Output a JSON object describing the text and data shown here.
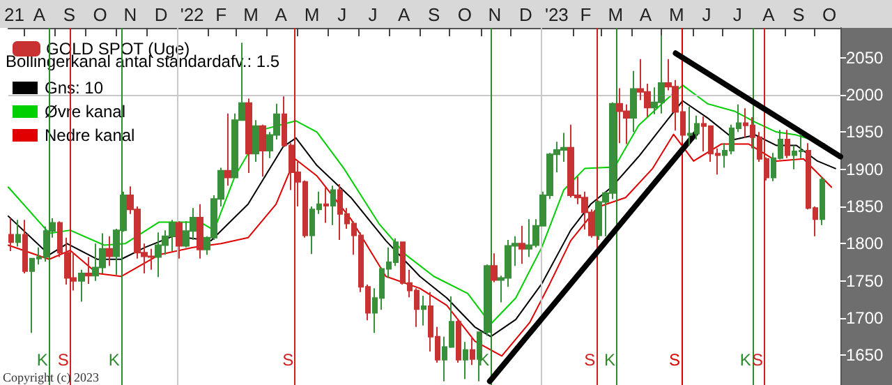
{
  "chart_data": {
    "type": "candlestick",
    "legend": "top left",
    "legend_title": "Bollingerkanal antal standardafv.: 1.5",
    "xlim": [
      "2021-07-16",
      "2023-10-27"
    ],
    "ylim": [
      1610,
      2090
    ],
    "yticks": [
      1650,
      1700,
      1750,
      1800,
      1850,
      1900,
      1950,
      2000,
      2050
    ],
    "xticks": [
      {
        "value": "2021-07-22",
        "label": "21"
      },
      {
        "value": "2021-08-16",
        "label": "A"
      },
      {
        "value": "2021-09-15",
        "label": "S"
      },
      {
        "value": "2021-10-16",
        "label": "O"
      },
      {
        "value": "2021-11-15",
        "label": "N"
      },
      {
        "value": "2021-12-16",
        "label": "D"
      },
      {
        "value": "2022-01-16",
        "label": "'22"
      },
      {
        "value": "2022-02-14",
        "label": "F"
      },
      {
        "value": "2022-03-16",
        "label": "M"
      },
      {
        "value": "2022-04-15",
        "label": "A"
      },
      {
        "value": "2022-05-16",
        "label": "M"
      },
      {
        "value": "2022-06-15",
        "label": "J"
      },
      {
        "value": "2022-07-16",
        "label": "J"
      },
      {
        "value": "2022-08-16",
        "label": "A"
      },
      {
        "value": "2022-09-15",
        "label": "S"
      },
      {
        "value": "2022-10-16",
        "label": "O"
      },
      {
        "value": "2022-11-15",
        "label": "N"
      },
      {
        "value": "2022-12-16",
        "label": "D"
      },
      {
        "value": "2023-01-16",
        "label": "'23"
      },
      {
        "value": "2023-02-14",
        "label": "F"
      },
      {
        "value": "2023-03-16",
        "label": "M"
      },
      {
        "value": "2023-04-15",
        "label": "A"
      },
      {
        "value": "2023-05-16",
        "label": "M"
      },
      {
        "value": "2023-06-15",
        "label": "J"
      },
      {
        "value": "2023-07-16",
        "label": "J"
      },
      {
        "value": "2023-08-16",
        "label": "A"
      },
      {
        "value": "2023-09-15",
        "label": "S"
      },
      {
        "value": "2023-10-16",
        "label": "O"
      },
      {
        "value": "2021-08-01",
        "label": null
      },
      {
        "value": "2021-09-01",
        "label": null
      },
      {
        "value": "2021-10-01",
        "label": null
      },
      {
        "value": "2021-11-01",
        "label": null
      },
      {
        "value": "2021-12-01",
        "label": null
      },
      {
        "value": "2022-02-01",
        "label": null
      },
      {
        "value": "2022-03-01",
        "label": null
      },
      {
        "value": "2022-04-01",
        "label": null
      },
      {
        "value": "2022-05-01",
        "label": null
      },
      {
        "value": "2022-06-01",
        "label": null
      },
      {
        "value": "2022-07-01",
        "label": null
      },
      {
        "value": "2022-08-01",
        "label": null
      },
      {
        "value": "2022-09-01",
        "label": null
      },
      {
        "value": "2022-10-01",
        "label": null
      },
      {
        "value": "2022-11-01",
        "label": null
      },
      {
        "value": "2022-12-01",
        "label": null
      },
      {
        "value": "2023-02-01",
        "label": null
      },
      {
        "value": "2023-03-01",
        "label": null
      },
      {
        "value": "2023-04-01",
        "label": null
      },
      {
        "value": "2023-05-01",
        "label": null
      },
      {
        "value": "2023-06-01",
        "label": null
      },
      {
        "value": "2023-07-01",
        "label": null
      },
      {
        "value": "2023-08-01",
        "label": null
      },
      {
        "value": "2023-09-01",
        "label": null
      },
      {
        "value": "2023-10-01",
        "label": null
      }
    ],
    "ref_lines": [
      {
        "axis": "x",
        "value": "2022-01-01",
        "color": "#c8c8c8"
      },
      {
        "axis": "x",
        "value": "2023-01-01",
        "color": "#c8c8c8"
      },
      {
        "axis": "y",
        "value": 2000,
        "color": "#c8c8c8"
      },
      {
        "axis": "x",
        "value": "2021-08-26",
        "label": "K",
        "color": "#2e8b2e"
      },
      {
        "axis": "x",
        "value": "2021-09-16",
        "label": "S",
        "color": "#d02020"
      },
      {
        "axis": "x",
        "value": "2021-11-06",
        "label": "K",
        "color": "#2e8b2e"
      },
      {
        "axis": "x",
        "value": "2022-04-29",
        "label": "S",
        "color": "#d02020"
      },
      {
        "axis": "x",
        "value": "2022-11-11",
        "label": "K",
        "color": "#2e8b2e"
      },
      {
        "axis": "x",
        "value": "2023-02-25",
        "label": "S",
        "color": "#d02020"
      },
      {
        "axis": "x",
        "value": "2023-03-17",
        "label": "K",
        "color": "#2e8b2e"
      },
      {
        "axis": "x",
        "value": "2023-05-21",
        "label": "S",
        "color": "#e00000"
      },
      {
        "axis": "x",
        "value": "2023-07-31",
        "label": "K",
        "color": "#2e8b2e"
      },
      {
        "axis": "x",
        "value": "2023-08-12",
        "label": "S",
        "color": "#d02020"
      }
    ],
    "annotations": [
      "Copyright (c) 2023"
    ],
    "series": [
      {
        "name": "GOLD SPOT (Uge)",
        "color": "#c83232",
        "x": [
          "2021-07-19",
          "2021-07-26",
          "2021-08-02",
          "2021-08-09",
          "2021-08-16",
          "2021-08-23",
          "2021-08-30",
          "2021-09-06",
          "2021-09-13",
          "2021-09-20",
          "2021-09-27",
          "2021-10-04",
          "2021-10-11",
          "2021-10-18",
          "2021-10-25",
          "2021-11-01",
          "2021-11-08",
          "2021-11-15",
          "2021-11-22",
          "2021-11-29",
          "2021-12-06",
          "2021-12-13",
          "2021-12-20",
          "2021-12-27",
          "2022-01-03",
          "2022-01-10",
          "2022-01-17",
          "2022-01-24",
          "2022-01-31",
          "2022-02-07",
          "2022-02-14",
          "2022-02-21",
          "2022-02-28",
          "2022-03-07",
          "2022-03-14",
          "2022-03-21",
          "2022-03-28",
          "2022-04-04",
          "2022-04-11",
          "2022-04-18",
          "2022-04-25",
          "2022-05-02",
          "2022-05-09",
          "2022-05-16",
          "2022-05-23",
          "2022-05-30",
          "2022-06-06",
          "2022-06-13",
          "2022-06-20",
          "2022-06-27",
          "2022-07-04",
          "2022-07-11",
          "2022-07-18",
          "2022-07-25",
          "2022-08-01",
          "2022-08-08",
          "2022-08-15",
          "2022-08-22",
          "2022-08-29",
          "2022-09-05",
          "2022-09-12",
          "2022-09-19",
          "2022-09-26",
          "2022-10-03",
          "2022-10-10",
          "2022-10-17",
          "2022-10-24",
          "2022-10-31",
          "2022-11-07",
          "2022-11-14",
          "2022-11-21",
          "2022-11-28",
          "2022-12-05",
          "2022-12-12",
          "2022-12-19",
          "2022-12-26",
          "2023-01-02",
          "2023-01-09",
          "2023-01-16",
          "2023-01-23",
          "2023-01-30",
          "2023-02-06",
          "2023-02-13",
          "2023-02-20",
          "2023-02-27",
          "2023-03-06",
          "2023-03-13",
          "2023-03-20",
          "2023-03-27",
          "2023-04-03",
          "2023-04-10",
          "2023-04-17",
          "2023-04-24",
          "2023-05-01",
          "2023-05-08",
          "2023-05-15",
          "2023-05-22",
          "2023-05-29",
          "2023-06-05",
          "2023-06-12",
          "2023-06-19",
          "2023-06-26",
          "2023-07-03",
          "2023-07-10",
          "2023-07-17",
          "2023-07-24",
          "2023-07-31",
          "2023-08-07",
          "2023-08-14",
          "2023-08-21",
          "2023-08-28",
          "2023-09-04",
          "2023-09-11",
          "2023-09-18",
          "2023-09-25",
          "2023-10-02",
          "2023-10-09"
        ],
        "ohlc": [
          [
            1812,
            1834,
            1790,
            1802
          ],
          [
            1802,
            1832,
            1796,
            1812
          ],
          [
            1812,
            1832,
            1760,
            1763
          ],
          [
            1763,
            1780,
            1680,
            1780
          ],
          [
            1780,
            1795,
            1772,
            1782
          ],
          [
            1782,
            1823,
            1776,
            1817
          ],
          [
            1817,
            1834,
            1808,
            1828
          ],
          [
            1828,
            1830,
            1782,
            1788
          ],
          [
            1788,
            1808,
            1745,
            1754
          ],
          [
            1754,
            1788,
            1737,
            1750
          ],
          [
            1750,
            1765,
            1722,
            1760
          ],
          [
            1760,
            1782,
            1746,
            1757
          ],
          [
            1757,
            1800,
            1750,
            1768
          ],
          [
            1768,
            1814,
            1760,
            1793
          ],
          [
            1793,
            1810,
            1770,
            1783
          ],
          [
            1783,
            1820,
            1758,
            1818
          ],
          [
            1818,
            1870,
            1816,
            1865
          ],
          [
            1865,
            1877,
            1840,
            1846
          ],
          [
            1846,
            1850,
            1780,
            1788
          ],
          [
            1788,
            1800,
            1760,
            1783
          ],
          [
            1783,
            1793,
            1765,
            1782
          ],
          [
            1782,
            1815,
            1755,
            1798
          ],
          [
            1798,
            1818,
            1785,
            1810
          ],
          [
            1810,
            1832,
            1790,
            1828
          ],
          [
            1828,
            1830,
            1780,
            1797
          ],
          [
            1797,
            1830,
            1795,
            1817
          ],
          [
            1817,
            1848,
            1805,
            1835
          ],
          [
            1835,
            1853,
            1780,
            1792
          ],
          [
            1792,
            1810,
            1785,
            1808
          ],
          [
            1808,
            1865,
            1805,
            1860
          ],
          [
            1860,
            1902,
            1850,
            1898
          ],
          [
            1898,
            1975,
            1878,
            1889
          ],
          [
            1889,
            1975,
            1889,
            1966
          ],
          [
            1966,
            2070,
            1966,
            1989
          ],
          [
            1989,
            1995,
            1895,
            1921
          ],
          [
            1921,
            1966,
            1910,
            1958
          ],
          [
            1958,
            1960,
            1890,
            1925
          ],
          [
            1925,
            1950,
            1915,
            1946
          ],
          [
            1946,
            1988,
            1940,
            1974
          ],
          [
            1974,
            1998,
            1930,
            1932
          ],
          [
            1932,
            1935,
            1872,
            1896
          ],
          [
            1896,
            1910,
            1850,
            1883
          ],
          [
            1883,
            1885,
            1808,
            1811
          ],
          [
            1811,
            1850,
            1786,
            1846
          ],
          [
            1846,
            1870,
            1840,
            1853
          ],
          [
            1853,
            1875,
            1828,
            1851
          ],
          [
            1851,
            1878,
            1825,
            1872
          ],
          [
            1872,
            1880,
            1805,
            1840
          ],
          [
            1840,
            1848,
            1820,
            1827
          ],
          [
            1827,
            1830,
            1785,
            1811
          ],
          [
            1811,
            1815,
            1735,
            1742
          ],
          [
            1742,
            1745,
            1697,
            1707
          ],
          [
            1707,
            1740,
            1680,
            1727
          ],
          [
            1727,
            1768,
            1711,
            1766
          ],
          [
            1766,
            1795,
            1754,
            1775
          ],
          [
            1775,
            1807,
            1770,
            1802
          ],
          [
            1802,
            1802,
            1745,
            1747
          ],
          [
            1747,
            1765,
            1728,
            1737
          ],
          [
            1737,
            1740,
            1688,
            1712
          ],
          [
            1712,
            1730,
            1690,
            1716
          ],
          [
            1716,
            1735,
            1655,
            1675
          ],
          [
            1675,
            1688,
            1640,
            1644
          ],
          [
            1644,
            1675,
            1615,
            1661
          ],
          [
            1661,
            1729,
            1660,
            1695
          ],
          [
            1695,
            1697,
            1640,
            1644
          ],
          [
            1644,
            1668,
            1618,
            1657
          ],
          [
            1657,
            1675,
            1637,
            1645
          ],
          [
            1645,
            1682,
            1615,
            1681
          ],
          [
            1681,
            1772,
            1676,
            1770
          ],
          [
            1770,
            1787,
            1748,
            1751
          ],
          [
            1751,
            1757,
            1721,
            1754
          ],
          [
            1754,
            1805,
            1742,
            1797
          ],
          [
            1797,
            1810,
            1770,
            1800
          ],
          [
            1800,
            1824,
            1773,
            1793
          ],
          [
            1793,
            1833,
            1782,
            1798
          ],
          [
            1798,
            1833,
            1795,
            1824
          ],
          [
            1824,
            1870,
            1823,
            1865
          ],
          [
            1865,
            1922,
            1860,
            1920
          ],
          [
            1920,
            1937,
            1896,
            1926
          ],
          [
            1926,
            1949,
            1910,
            1929
          ],
          [
            1929,
            1960,
            1862,
            1865
          ],
          [
            1865,
            1890,
            1853,
            1862
          ],
          [
            1862,
            1870,
            1819,
            1842
          ],
          [
            1842,
            1846,
            1808,
            1811
          ],
          [
            1811,
            1858,
            1805,
            1856
          ],
          [
            1856,
            1870,
            1810,
            1868
          ],
          [
            1868,
            1990,
            1860,
            1988
          ],
          [
            1988,
            2009,
            1935,
            1978
          ],
          [
            1978,
            1987,
            1934,
            1969
          ],
          [
            1969,
            2032,
            1950,
            2008
          ],
          [
            2008,
            2048,
            1993,
            2004
          ],
          [
            2004,
            2015,
            1970,
            1983
          ],
          [
            1983,
            2010,
            1974,
            1990
          ],
          [
            1990,
            2080,
            1975,
            2016
          ],
          [
            2016,
            2048,
            2006,
            2011
          ],
          [
            2011,
            2020,
            1952,
            1977
          ],
          [
            1977,
            1985,
            1936,
            1946
          ],
          [
            1946,
            1984,
            1932,
            1948
          ],
          [
            1948,
            1972,
            1940,
            1961
          ],
          [
            1961,
            1971,
            1924,
            1958
          ],
          [
            1958,
            1959,
            1910,
            1921
          ],
          [
            1921,
            1928,
            1893,
            1919
          ],
          [
            1919,
            1935,
            1902,
            1925
          ],
          [
            1925,
            1960,
            1920,
            1955
          ],
          [
            1955,
            1987,
            1950,
            1962
          ],
          [
            1962,
            1982,
            1942,
            1959
          ],
          [
            1959,
            1970,
            1928,
            1943
          ],
          [
            1943,
            1950,
            1910,
            1914
          ],
          [
            1914,
            1916,
            1885,
            1889
          ],
          [
            1889,
            1922,
            1884,
            1915
          ],
          [
            1915,
            1953,
            1913,
            1940
          ],
          [
            1940,
            1953,
            1915,
            1919
          ],
          [
            1919,
            1932,
            1900,
            1924
          ],
          [
            1924,
            1947,
            1915,
            1925
          ],
          [
            1925,
            1935,
            1846,
            1848
          ],
          [
            1848,
            1850,
            1810,
            1833
          ],
          [
            1833,
            1890,
            1825,
            1886
          ]
        ],
        "colors": [
          "#c83232",
          "#3a8f3a",
          "#c83232",
          "#3a8f3a",
          "#3a8f3a",
          "#3a8f3a",
          "#3a8f3a",
          "#c83232",
          "#c83232",
          "#c83232",
          "#3a8f3a",
          "#c83232",
          "#3a8f3a",
          "#3a8f3a",
          "#c83232",
          "#3a8f3a",
          "#3a8f3a",
          "#c83232",
          "#c83232",
          "#c83232",
          "#c83232",
          "#3a8f3a",
          "#3a8f3a",
          "#3a8f3a",
          "#c83232",
          "#3a8f3a",
          "#3a8f3a",
          "#c83232",
          "#3a8f3a",
          "#3a8f3a",
          "#3a8f3a",
          "#c83232",
          "#3a8f3a",
          "#3a8f3a",
          "#c83232",
          "#3a8f3a",
          "#c83232",
          "#3a8f3a",
          "#3a8f3a",
          "#c83232",
          "#c83232",
          "#c83232",
          "#c83232",
          "#3a8f3a",
          "#3a8f3a",
          "#c83232",
          "#3a8f3a",
          "#c83232",
          "#c83232",
          "#c83232",
          "#c83232",
          "#c83232",
          "#3a8f3a",
          "#3a8f3a",
          "#3a8f3a",
          "#3a8f3a",
          "#c83232",
          "#c83232",
          "#c83232",
          "#3a8f3a",
          "#c83232",
          "#c83232",
          "#3a8f3a",
          "#3a8f3a",
          "#c83232",
          "#3a8f3a",
          "#c83232",
          "#3a8f3a",
          "#3a8f3a",
          "#c83232",
          "#3a8f3a",
          "#3a8f3a",
          "#3a8f3a",
          "#c83232",
          "#3a8f3a",
          "#3a8f3a",
          "#3a8f3a",
          "#3a8f3a",
          "#3a8f3a",
          "#3a8f3a",
          "#c83232",
          "#c83232",
          "#c83232",
          "#c83232",
          "#3a8f3a",
          "#3a8f3a",
          "#3a8f3a",
          "#c83232",
          "#c83232",
          "#3a8f3a",
          "#c83232",
          "#c83232",
          "#3a8f3a",
          "#3a8f3a",
          "#c83232",
          "#c83232",
          "#c83232",
          "#3a8f3a",
          "#3a8f3a",
          "#c83232",
          "#c83232",
          "#c83232",
          "#3a8f3a",
          "#3a8f3a",
          "#3a8f3a",
          "#c83232",
          "#c83232",
          "#c83232",
          "#c83232",
          "#3a8f3a",
          "#3a8f3a",
          "#c83232",
          "#3a8f3a",
          "#3a8f3a",
          "#c83232",
          "#c83232",
          "#3a8f3a"
        ]
      },
      {
        "name": "Gns: 10",
        "type": "line",
        "color": "#000000",
        "x": [
          "2021-07-16",
          "2021-08-26",
          "2021-09-13",
          "2021-10-13",
          "2021-11-06",
          "2021-11-30",
          "2021-12-28",
          "2022-02-04",
          "2022-03-13",
          "2022-04-17",
          "2022-04-30",
          "2022-05-21",
          "2022-06-24",
          "2022-07-29",
          "2022-09-01",
          "2022-09-28",
          "2022-10-26",
          "2022-11-11",
          "2022-12-06",
          "2023-01-01",
          "2023-01-30",
          "2023-02-19",
          "2023-03-12",
          "2023-04-08",
          "2023-05-06",
          "2023-05-22",
          "2023-06-16",
          "2023-07-13",
          "2023-08-03",
          "2023-08-24",
          "2023-09-13",
          "2023-10-04",
          "2023-10-22"
        ],
        "values": [
          1837,
          1785,
          1800,
          1779,
          1779,
          1795,
          1810,
          1804,
          1853,
          1930,
          1942,
          1905,
          1862,
          1804,
          1756,
          1727,
          1688,
          1675,
          1698,
          1746,
          1818,
          1853,
          1876,
          1917,
          1965,
          1992,
          1969,
          1940,
          1946,
          1932,
          1932,
          1911,
          1901
        ]
      },
      {
        "name": "Øvre kanal",
        "type": "line",
        "color": "#00d000",
        "x": [
          "2021-07-16",
          "2021-08-26",
          "2021-09-16",
          "2021-10-20",
          "2021-11-10",
          "2021-12-14",
          "2022-01-24",
          "2022-02-07",
          "2022-02-28",
          "2022-03-27",
          "2022-04-30",
          "2022-05-21",
          "2022-06-17",
          "2022-07-22",
          "2022-08-18",
          "2022-09-15",
          "2022-10-19",
          "2022-11-11",
          "2022-12-06",
          "2023-01-01",
          "2023-01-23",
          "2023-02-13",
          "2023-03-15",
          "2023-04-08",
          "2023-05-06",
          "2023-05-22",
          "2023-06-16",
          "2023-07-13",
          "2023-08-03",
          "2023-08-24",
          "2023-09-13",
          "2023-10-11"
        ],
        "values": [
          1876,
          1814,
          1818,
          1798,
          1800,
          1829,
          1829,
          1818,
          1891,
          1953,
          1965,
          1950,
          1901,
          1827,
          1785,
          1756,
          1733,
          1692,
          1727,
          1795,
          1872,
          1901,
          1903,
          1959,
          1994,
          2013,
          1988,
          1978,
          1963,
          1950,
          1946,
          1934
        ]
      },
      {
        "name": "Nedre kanal",
        "type": "line",
        "color": "#e00000",
        "x": [
          "2021-07-16",
          "2021-08-26",
          "2021-09-16",
          "2021-10-13",
          "2021-11-06",
          "2021-12-14",
          "2022-01-17",
          "2022-02-14",
          "2022-03-13",
          "2022-04-10",
          "2022-04-29",
          "2022-05-21",
          "2022-06-24",
          "2022-07-29",
          "2022-09-01",
          "2022-09-28",
          "2022-10-26",
          "2022-11-22",
          "2022-12-20",
          "2023-01-09",
          "2023-01-30",
          "2023-02-26",
          "2023-03-26",
          "2023-04-22",
          "2023-05-13",
          "2023-06-02",
          "2023-06-30",
          "2023-07-27",
          "2023-08-24",
          "2023-09-20",
          "2023-10-18"
        ],
        "values": [
          1798,
          1779,
          1791,
          1760,
          1756,
          1785,
          1795,
          1800,
          1808,
          1853,
          1914,
          1891,
          1833,
          1756,
          1740,
          1717,
          1669,
          1649,
          1694,
          1746,
          1804,
          1849,
          1862,
          1901,
          1947,
          1911,
          1934,
          1934,
          1911,
          1914,
          1876
        ]
      },
      {
        "type": "line",
        "color": "#000000",
        "x": [
          "2022-11-10",
          "2023-06-04"
        ],
        "values": [
          1615,
          1948
        ]
      },
      {
        "type": "line",
        "color": "#000000",
        "x": [
          "2023-05-15",
          "2023-10-27"
        ],
        "values": [
          2056,
          1917
        ]
      }
    ]
  }
}
